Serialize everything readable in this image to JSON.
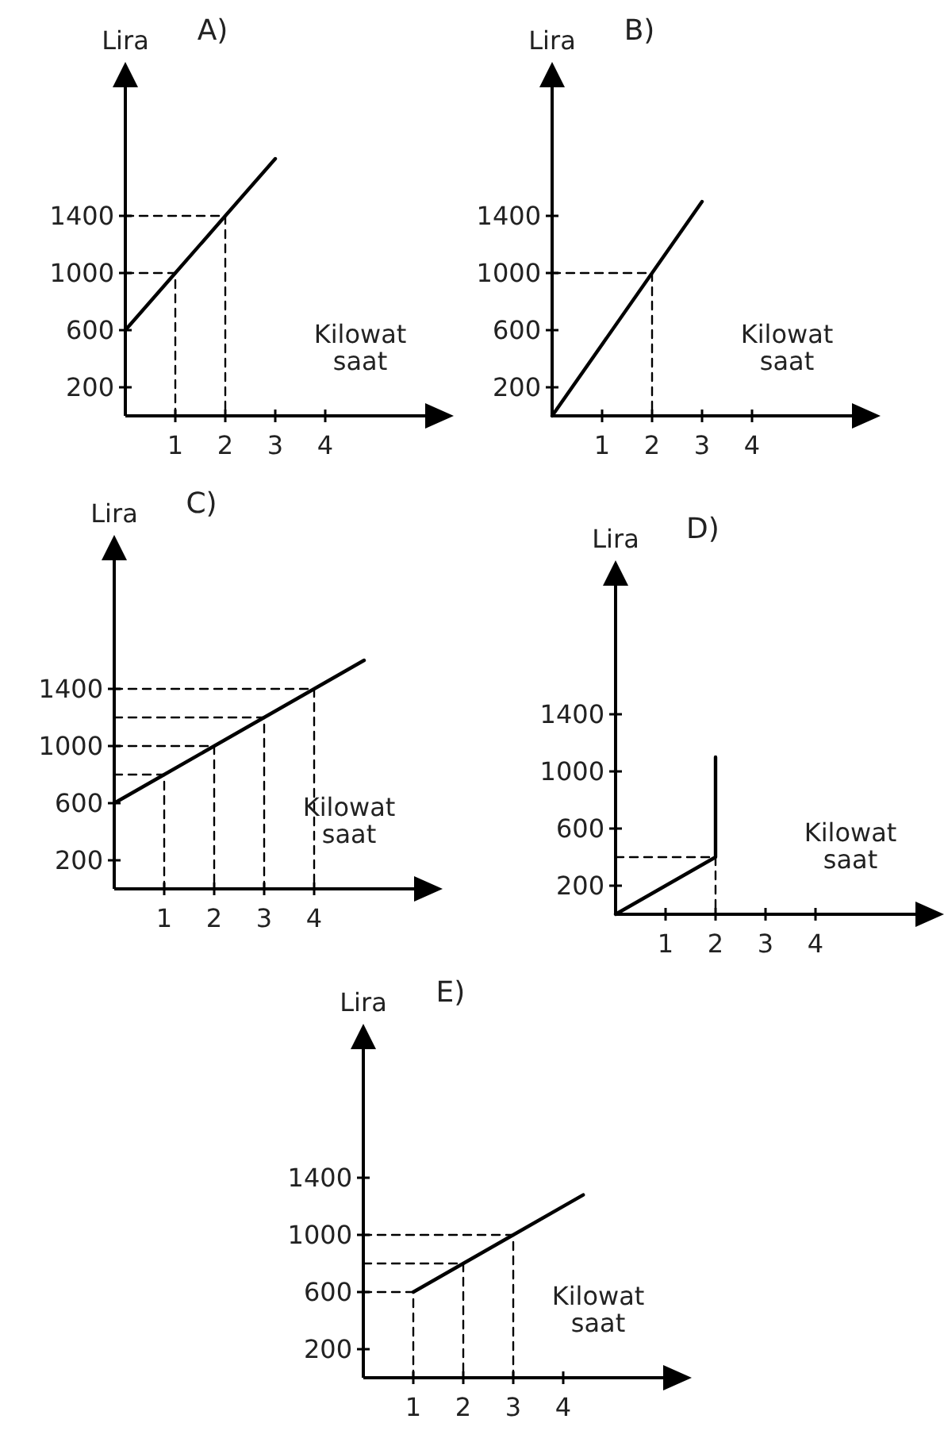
{
  "chart_data": [
    {
      "type": "line",
      "title": "A)",
      "xlabel": "Kilowat saat",
      "ylabel": "Lira",
      "xlim": [
        0,
        6
      ],
      "ylim": [
        0,
        2300
      ],
      "xticks": [
        1,
        2,
        3,
        4
      ],
      "yticks": [
        200,
        600,
        1000,
        1400
      ],
      "series": [
        {
          "color": "#000000",
          "x": [
            0,
            1,
            2,
            3
          ],
          "values": [
            600,
            1000,
            1400,
            1800
          ]
        },
        {
          "color": "#000000",
          "line_style": "dashed",
          "x": [
            0,
            1,
            1
          ],
          "values": [
            1000,
            1000,
            0
          ]
        },
        {
          "color": "#000000",
          "line_style": "dashed",
          "x": [
            0,
            2,
            2
          ],
          "values": [
            1400,
            1400,
            0
          ]
        }
      ]
    },
    {
      "type": "line",
      "title": "B)",
      "xlabel": "Kilowat saat",
      "ylabel": "Lira",
      "xlim": [
        0,
        6
      ],
      "ylim": [
        0,
        2300
      ],
      "xticks": [
        1,
        2,
        3,
        4
      ],
      "yticks": [
        200,
        600,
        1000,
        1400
      ],
      "series": [
        {
          "color": "#000000",
          "x": [
            0,
            2,
            3
          ],
          "values": [
            0,
            1000,
            1500
          ]
        },
        {
          "color": "#000000",
          "line_style": "dashed",
          "x": [
            0,
            2,
            2
          ],
          "values": [
            1000,
            1000,
            0
          ]
        }
      ]
    },
    {
      "type": "line",
      "title": "C)",
      "xlabel": "Kilowat saat",
      "ylabel": "Lira",
      "xlim": [
        0,
        6
      ],
      "ylim": [
        0,
        2300
      ],
      "xticks": [
        1,
        2,
        3,
        4
      ],
      "yticks": [
        200,
        600,
        1000,
        1400
      ],
      "series": [
        {
          "color": "#000000",
          "x": [
            0,
            1,
            2,
            3,
            4,
            5
          ],
          "values": [
            600,
            800,
            1000,
            1200,
            1400,
            1600
          ]
        },
        {
          "color": "#000000",
          "line_style": "dashed",
          "x": [
            0,
            1,
            1
          ],
          "values": [
            800,
            800,
            0
          ]
        },
        {
          "color": "#000000",
          "line_style": "dashed",
          "x": [
            0,
            2,
            2
          ],
          "values": [
            1000,
            1000,
            0
          ]
        },
        {
          "color": "#000000",
          "line_style": "dashed",
          "x": [
            0,
            3,
            3
          ],
          "values": [
            1200,
            1200,
            0
          ]
        },
        {
          "color": "#000000",
          "line_style": "dashed",
          "x": [
            0,
            4,
            4
          ],
          "values": [
            1400,
            1400,
            0
          ]
        }
      ]
    },
    {
      "type": "line",
      "title": "D)",
      "xlabel": "Kilowat saat",
      "ylabel": "Lira",
      "xlim": [
        0,
        6
      ],
      "ylim": [
        0,
        2300
      ],
      "xticks": [
        1,
        2,
        3,
        4
      ],
      "yticks": [
        200,
        600,
        1000,
        1400
      ],
      "series": [
        {
          "color": "#000000",
          "x": [
            0,
            2,
            2
          ],
          "values": [
            0,
            400,
            1100
          ]
        },
        {
          "color": "#000000",
          "line_style": "dashed",
          "x": [
            0,
            2,
            2
          ],
          "values": [
            400,
            400,
            0
          ]
        }
      ]
    },
    {
      "type": "line",
      "title": "E)",
      "xlabel": "Kilowat saat",
      "ylabel": "Lira",
      "xlim": [
        0,
        6
      ],
      "ylim": [
        0,
        2300
      ],
      "xticks": [
        1,
        2,
        3,
        4
      ],
      "yticks": [
        200,
        600,
        1000,
        1400
      ],
      "series": [
        {
          "color": "#000000",
          "x": [
            1,
            2,
            3,
            4.4
          ],
          "values": [
            600,
            800,
            1000,
            1280
          ]
        },
        {
          "color": "#000000",
          "line_style": "dashed",
          "x": [
            0,
            1,
            1
          ],
          "values": [
            600,
            600,
            0
          ]
        },
        {
          "color": "#000000",
          "line_style": "dashed",
          "x": [
            0,
            2,
            2
          ],
          "values": [
            800,
            800,
            0
          ]
        },
        {
          "color": "#000000",
          "line_style": "dashed",
          "x": [
            0,
            3,
            3
          ],
          "values": [
            1000,
            1000,
            0
          ]
        }
      ]
    }
  ]
}
